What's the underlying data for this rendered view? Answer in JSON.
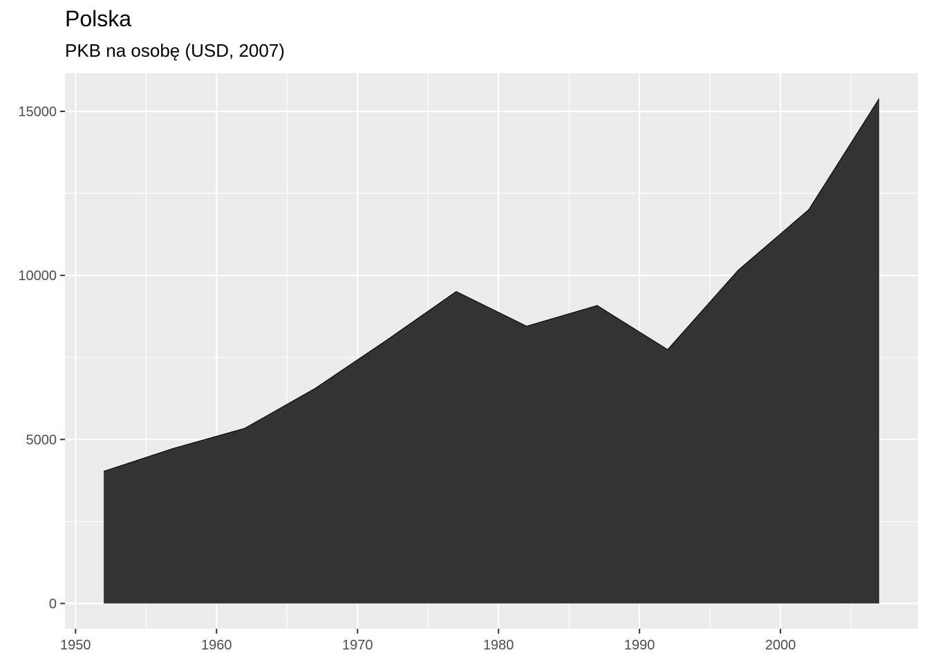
{
  "chart_data": {
    "type": "area",
    "title": "Polska",
    "subtitle": "PKB na osobę (USD, 2007)",
    "xlabel": "",
    "ylabel": "",
    "x": [
      1952,
      1957,
      1962,
      1967,
      1972,
      1977,
      1982,
      1987,
      1992,
      1997,
      2002,
      2007
    ],
    "values": [
      4029,
      4734,
      5339,
      6557,
      8006,
      9508,
      8452,
      9082,
      7739,
      10160,
      12002,
      15390
    ],
    "xlim": [
      1949.25,
      2009.75
    ],
    "ylim": [
      -770,
      16160
    ],
    "x_ticks": [
      1950,
      1960,
      1970,
      1980,
      1990,
      2000
    ],
    "y_ticks": [
      0,
      5000,
      10000,
      15000
    ],
    "x_tick_labels": [
      "1950",
      "1960",
      "1970",
      "1980",
      "1990",
      "2000"
    ],
    "y_tick_labels": [
      "0",
      "5000",
      "10000",
      "15000"
    ],
    "grid": true,
    "legend": "none",
    "colors": {
      "panel_background": "#ebebeb",
      "grid_major": "#ffffff",
      "area_fill": "#333333",
      "area_outline": "#000000",
      "tick_text": "#4d4d4d",
      "tick_mark": "#333333"
    }
  }
}
